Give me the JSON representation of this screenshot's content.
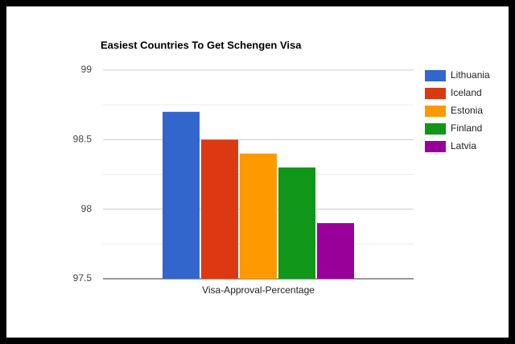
{
  "chart_data": {
    "type": "bar",
    "title": "Easiest Countries To Get Schengen Visa",
    "categories": [
      "Visa-Approval-Percentage"
    ],
    "series": [
      {
        "name": "Lithuania",
        "color": "#3366cc",
        "values": [
          98.7
        ]
      },
      {
        "name": "Iceland",
        "color": "#dc3912",
        "values": [
          98.5
        ]
      },
      {
        "name": "Estonia",
        "color": "#ff9900",
        "values": [
          98.4
        ]
      },
      {
        "name": "Finland",
        "color": "#109618",
        "values": [
          98.3
        ]
      },
      {
        "name": "Latvia",
        "color": "#990099",
        "values": [
          97.9
        ]
      }
    ],
    "ylim": [
      97.5,
      99
    ],
    "yticks": [
      97.5,
      98,
      98.5,
      99
    ],
    "grid": true,
    "legend": "right"
  }
}
